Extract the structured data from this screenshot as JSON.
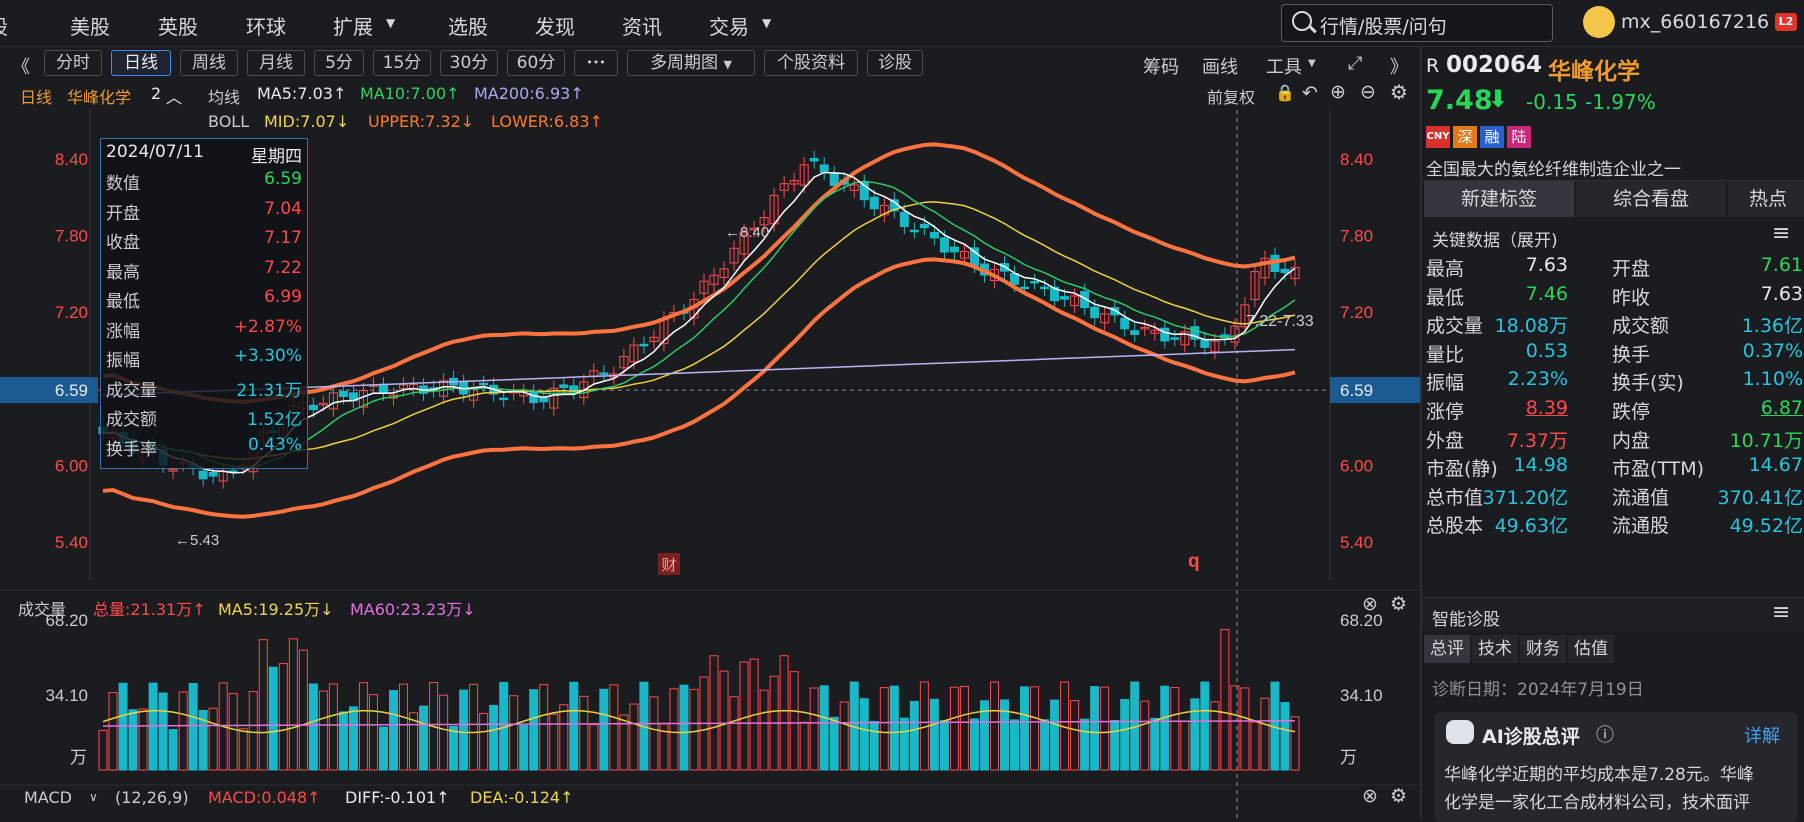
{
  "nav": {
    "items": [
      "股",
      "美股",
      "英股",
      "环球",
      "扩展",
      "选股",
      "发现",
      "资讯",
      "交易"
    ],
    "search_placeholder": "行情/股票/问句",
    "username": "mx_660167216",
    "level": "L2"
  },
  "toolbar": {
    "nav_prev": "《",
    "periods": [
      "分时",
      "日线",
      "周线",
      "月线",
      "5分",
      "15分",
      "30分",
      "60分"
    ],
    "active": "日线",
    "more": "•••",
    "multi": "多周期图",
    "profile": "个股资料",
    "diagnose": "诊股",
    "right": [
      "筹码",
      "画线",
      "工具"
    ],
    "expand": "⤢",
    "nav_next": "》"
  },
  "indicators": {
    "period": "日线",
    "name": "华峰化学",
    "count": "2",
    "ma_label": "均线",
    "ma5": "MA5:7.03↑",
    "ma10": "MA10:7.00↑",
    "ma200": "MA200:6.93↑",
    "boll": "BOLL",
    "mid": "MID:7.07↓",
    "upper": "UPPER:7.32↓",
    "lower": "LOWER:6.83↑",
    "adjust": "前复权"
  },
  "axis": {
    "left": [
      "8.40",
      "7.80",
      "7.20",
      "6.59",
      "6.00",
      "5.40"
    ],
    "right": [
      "8.40",
      "7.80",
      "7.20",
      "6.59",
      "6.00",
      "5.40"
    ],
    "hl_high": "←8.40",
    "hl_low": "←5.43",
    "range_label": "7.22-7.33",
    "cai": "财",
    "q": "q"
  },
  "tooltip": {
    "date": "2024/07/11",
    "weekday": "星期四",
    "rows": [
      {
        "l": "数值",
        "v": "6.59",
        "c": "green"
      },
      {
        "l": "开盘",
        "v": "7.04",
        "c": "red"
      },
      {
        "l": "收盘",
        "v": "7.17",
        "c": "red"
      },
      {
        "l": "最高",
        "v": "7.22",
        "c": "red"
      },
      {
        "l": "最低",
        "v": "6.99",
        "c": "red"
      },
      {
        "l": "涨幅",
        "v": "+2.87%",
        "c": "red"
      },
      {
        "l": "振幅",
        "v": "+3.30%",
        "c": "cyan"
      },
      {
        "l": "成交量",
        "v": "21.31万",
        "c": "cyan"
      },
      {
        "l": "成交额",
        "v": "1.52亿",
        "c": "cyan"
      },
      {
        "l": "换手率",
        "v": "0.43%",
        "c": "cyan"
      }
    ]
  },
  "volume": {
    "title": "成交量",
    "total": "总量:21.31万↑",
    "ma5": "MA5:19.25万↓",
    "ma60": "MA60:23.23万↓",
    "axis": [
      "68.20",
      "34.10",
      "万"
    ]
  },
  "macd": {
    "title": "MACD",
    "params": "(12,26,9)",
    "macd": "MACD:0.048↑",
    "diff": "DIFF:-0.101↑",
    "dea": "DEA:-0.124↑"
  },
  "quote": {
    "prefix": "R",
    "code": "002064",
    "name": "华峰化学",
    "price": "7.48",
    "change": "-0.15",
    "pct": "-1.97%",
    "badges": [
      "CNY",
      "深",
      "融",
      "陆"
    ],
    "desc": "全国最大的氨纶纤维制造企业之一",
    "tabs": [
      "新建标签",
      "综合看盘",
      "热点"
    ],
    "key_title": "关键数据（展开)",
    "key": [
      [
        "最高",
        "7.63",
        "white",
        "开盘",
        "7.61",
        "green"
      ],
      [
        "最低",
        "7.46",
        "green",
        "昨收",
        "7.63",
        "white"
      ],
      [
        "成交量",
        "18.08万",
        "cyan",
        "成交额",
        "1.36亿",
        "cyan"
      ],
      [
        "量比",
        "0.53",
        "cyan",
        "换手",
        "0.37%",
        "cyan"
      ],
      [
        "振幅",
        "2.23%",
        "cyan",
        "换手(实)",
        "1.10%",
        "cyan"
      ],
      [
        "涨停",
        "8.39",
        "red",
        "跌停",
        "6.87",
        "green"
      ],
      [
        "外盘",
        "7.37万",
        "red",
        "内盘",
        "10.71万",
        "green"
      ],
      [
        "市盈(静)",
        "14.98",
        "cyan",
        "市盈(TTM)",
        "14.67",
        "cyan"
      ],
      [
        "总市值",
        "371.20亿",
        "cyan",
        "流通值",
        "370.41亿",
        "cyan"
      ],
      [
        "总股本",
        "49.63亿",
        "cyan",
        "流通股",
        "49.52亿",
        "cyan"
      ]
    ]
  },
  "diag": {
    "title": "智能诊股",
    "tabs": [
      "总评",
      "技术",
      "财务",
      "估值"
    ],
    "date": "诊断日期：2024年7月19日",
    "ai_title": "AI诊股总评",
    "detail": "详解",
    "text1": "华峰化学近期的平均成本是7.28元。华峰",
    "text2": "化学是一家化工合成材料公司，技术面评"
  },
  "colors": {
    "up": "#ff4a4a",
    "down": "#18b8c8",
    "boll": "#ff7340",
    "ma5": "#ffffff",
    "ma10": "#2ec866",
    "ma20": "#f0d040",
    "ma200": "#b7b3f5"
  }
}
